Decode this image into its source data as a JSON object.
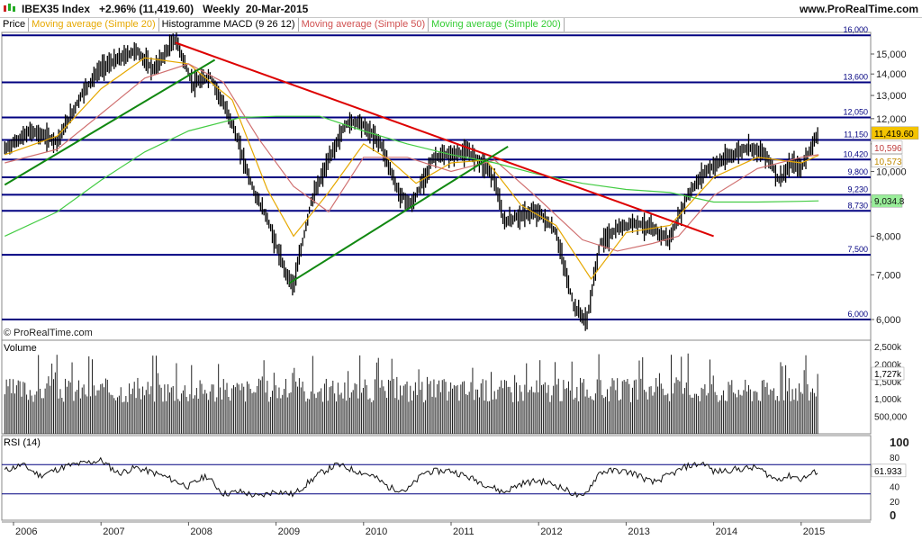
{
  "header": {
    "title": "IBEX35 Index   +2.96% (11,419.60)   Weekly  20-Mar-2015",
    "brand": "www.ProRealTime.com"
  },
  "legend": [
    {
      "label": "Price",
      "color": "#000000"
    },
    {
      "label": "Moving average (Simple 20)",
      "color": "#e6a800"
    },
    {
      "label": "Histogramme MACD (9 26 12)",
      "color": "#000000"
    },
    {
      "label": "Moving average (Simple 50)",
      "color": "#d05050"
    },
    {
      "label": "Moving average (Simple 200)",
      "color": "#33cc33"
    }
  ],
  "watermark": "© ProRealTime.com",
  "colors": {
    "price": "#000000",
    "ma20": "#e6a800",
    "ma50": "#d07070",
    "ma200": "#44cc44",
    "trend_red": "#dd0000",
    "trend_green": "#118811",
    "levels": "#000080",
    "last_price_box": "#f5c400",
    "ma200_box": "#99ee99"
  },
  "chart_data": [
    {
      "panel": "Price",
      "type": "bar",
      "subtype": "OHLC weekly",
      "title": "IBEX35 Index",
      "y_axis": {
        "scale": "log",
        "ticks": [
          6000,
          7000,
          8000,
          9000,
          10000,
          11000,
          12000,
          13000,
          14000,
          15000
        ],
        "tick_labels": [
          "6,000",
          "7,000",
          "8,000",
          "",
          "10,000",
          "",
          "12,000",
          "13,000",
          "14,000",
          "15,000"
        ]
      },
      "x_axis": {
        "ticks": [
          "2006",
          "2007",
          "2008",
          "2009",
          "2010",
          "2011",
          "2012",
          "2013",
          "2014",
          "2015"
        ]
      },
      "price_series": {
        "name": "Price",
        "points": [
          [
            2005.9,
            10800
          ],
          [
            2006.2,
            11500
          ],
          [
            2006.5,
            11100
          ],
          [
            2006.8,
            13200
          ],
          [
            2007.0,
            14300
          ],
          [
            2007.4,
            15200
          ],
          [
            2007.6,
            14200
          ],
          [
            2007.85,
            15800
          ],
          [
            2008.05,
            13500
          ],
          [
            2008.25,
            13900
          ],
          [
            2008.5,
            11800
          ],
          [
            2008.75,
            9300
          ],
          [
            2008.9,
            8500
          ],
          [
            2009.1,
            7100
          ],
          [
            2009.2,
            6750
          ],
          [
            2009.4,
            9000
          ],
          [
            2009.6,
            10400
          ],
          [
            2009.8,
            11800
          ],
          [
            2009.95,
            11900
          ],
          [
            2010.2,
            11000
          ],
          [
            2010.4,
            9300
          ],
          [
            2010.55,
            8900
          ],
          [
            2010.8,
            10500
          ],
          [
            2011.0,
            10600
          ],
          [
            2011.2,
            10700
          ],
          [
            2011.4,
            10200
          ],
          [
            2011.5,
            9700
          ],
          [
            2011.6,
            8400
          ],
          [
            2011.8,
            8600
          ],
          [
            2012.0,
            8700
          ],
          [
            2012.2,
            8100
          ],
          [
            2012.4,
            6300
          ],
          [
            2012.55,
            5950
          ],
          [
            2012.7,
            7800
          ],
          [
            2012.9,
            8200
          ],
          [
            2013.1,
            8400
          ],
          [
            2013.3,
            8200
          ],
          [
            2013.5,
            7900
          ],
          [
            2013.7,
            9200
          ],
          [
            2013.9,
            10000
          ],
          [
            2014.1,
            10400
          ],
          [
            2014.4,
            10900
          ],
          [
            2014.6,
            10600
          ],
          [
            2014.75,
            9700
          ],
          [
            2014.9,
            10300
          ],
          [
            2015.0,
            10100
          ],
          [
            2015.1,
            10800
          ],
          [
            2015.2,
            11419.6
          ]
        ],
        "last": 11419.6
      },
      "moving_averages": [
        {
          "name": "Moving average (Simple 20)",
          "last": 10573,
          "points": [
            [
              2005.9,
              10600
            ],
            [
              2006.5,
              11300
            ],
            [
              2007.0,
              13300
            ],
            [
              2007.5,
              14800
            ],
            [
              2008.0,
              14500
            ],
            [
              2008.5,
              12800
            ],
            [
              2008.9,
              9400
            ],
            [
              2009.2,
              8000
            ],
            [
              2009.6,
              9300
            ],
            [
              2010.0,
              11000
            ],
            [
              2010.3,
              10400
            ],
            [
              2010.6,
              9600
            ],
            [
              2011.0,
              10300
            ],
            [
              2011.4,
              10400
            ],
            [
              2011.8,
              8900
            ],
            [
              2012.2,
              8300
            ],
            [
              2012.6,
              6900
            ],
            [
              2013.0,
              8100
            ],
            [
              2013.5,
              8300
            ],
            [
              2014.0,
              9800
            ],
            [
              2014.5,
              10500
            ],
            [
              2015.0,
              10300
            ],
            [
              2015.2,
              10573
            ]
          ]
        },
        {
          "name": "Moving average (Simple 50)",
          "last": 10596,
          "points": [
            [
              2005.9,
              10300
            ],
            [
              2006.5,
              10800
            ],
            [
              2007.0,
              12200
            ],
            [
              2007.5,
              13800
            ],
            [
              2008.0,
              14500
            ],
            [
              2008.4,
              13600
            ],
            [
              2008.8,
              11200
            ],
            [
              2009.2,
              9500
            ],
            [
              2009.6,
              8700
            ],
            [
              2010.0,
              10500
            ],
            [
              2010.5,
              10500
            ],
            [
              2011.0,
              10000
            ],
            [
              2011.5,
              10400
            ],
            [
              2012.0,
              9100
            ],
            [
              2012.5,
              7900
            ],
            [
              2012.9,
              7600
            ],
            [
              2013.3,
              7800
            ],
            [
              2013.6,
              8000
            ],
            [
              2014.0,
              9200
            ],
            [
              2014.5,
              10100
            ],
            [
              2015.0,
              10500
            ],
            [
              2015.2,
              10596
            ]
          ]
        },
        {
          "name": "Moving average (Simple 200)",
          "last": 9034.8,
          "points": [
            [
              2005.9,
              8000
            ],
            [
              2006.5,
              8700
            ],
            [
              2007.0,
              9700
            ],
            [
              2007.5,
              10700
            ],
            [
              2008.0,
              11500
            ],
            [
              2008.6,
              12050
            ],
            [
              2009.0,
              12100
            ],
            [
              2009.5,
              12100
            ],
            [
              2010.0,
              11500
            ],
            [
              2010.5,
              11000
            ],
            [
              2011.0,
              10600
            ],
            [
              2011.5,
              10300
            ],
            [
              2012.0,
              9900
            ],
            [
              2012.5,
              9600
            ],
            [
              2013.0,
              9400
            ],
            [
              2013.5,
              9300
            ],
            [
              2014.0,
              9000
            ],
            [
              2014.5,
              9000
            ],
            [
              2015.0,
              9020
            ],
            [
              2015.2,
              9034.8
            ]
          ]
        }
      ],
      "horizontal_levels": [
        16000,
        13600,
        12050,
        11150,
        10420,
        9800,
        9230,
        8730,
        7500,
        6000
      ],
      "level_labels": [
        "16,000",
        "13,600",
        "12,050",
        "11,150",
        "10,420",
        "9,800",
        "9,230",
        "8,730",
        "7,500",
        "6,000"
      ],
      "value_boxes": [
        "11,419.60",
        "10,596",
        "10,573",
        "9,034.8"
      ],
      "trendlines": [
        {
          "color": "red",
          "from": [
            2007.85,
            15600
          ],
          "to": [
            2014.0,
            8000
          ]
        },
        {
          "color": "green",
          "from": [
            2005.9,
            9550
          ],
          "to": [
            2008.3,
            14700
          ]
        },
        {
          "color": "green",
          "from": [
            2009.15,
            6800
          ],
          "to": [
            2011.65,
            10900
          ]
        }
      ]
    },
    {
      "panel": "Volume",
      "type": "bar",
      "title": "Volume",
      "ylim": [
        0,
        2500000
      ],
      "ticks": [
        "2,500k",
        "2,000k",
        "1,500k",
        "1,000k",
        "500,000"
      ],
      "last_label": "1,727k",
      "last": 1727000
    },
    {
      "panel": "RSI (14)",
      "type": "line",
      "title": "RSI (14)",
      "ylim": [
        0,
        100
      ],
      "ticks": [
        "100",
        "80",
        "60",
        "40",
        "20",
        "0"
      ],
      "levels": [
        70,
        30
      ],
      "last_label": "61.933",
      "last": 61.933,
      "points": [
        [
          2005.9,
          62
        ],
        [
          2006.1,
          70
        ],
        [
          2006.3,
          55
        ],
        [
          2006.6,
          68
        ],
        [
          2006.9,
          74
        ],
        [
          2007.0,
          76
        ],
        [
          2007.2,
          58
        ],
        [
          2007.4,
          66
        ],
        [
          2007.7,
          55
        ],
        [
          2008.0,
          40
        ],
        [
          2008.2,
          55
        ],
        [
          2008.4,
          30
        ],
        [
          2008.6,
          33
        ],
        [
          2008.8,
          26
        ],
        [
          2009.0,
          34
        ],
        [
          2009.2,
          29
        ],
        [
          2009.5,
          58
        ],
        [
          2009.7,
          70
        ],
        [
          2009.9,
          62
        ],
        [
          2010.1,
          55
        ],
        [
          2010.3,
          38
        ],
        [
          2010.5,
          35
        ],
        [
          2010.7,
          60
        ],
        [
          2011.0,
          62
        ],
        [
          2011.3,
          48
        ],
        [
          2011.6,
          32
        ],
        [
          2011.8,
          44
        ],
        [
          2012.0,
          48
        ],
        [
          2012.2,
          42
        ],
        [
          2012.4,
          30
        ],
        [
          2012.5,
          24
        ],
        [
          2012.7,
          60
        ],
        [
          2012.9,
          62
        ],
        [
          2013.1,
          58
        ],
        [
          2013.3,
          45
        ],
        [
          2013.5,
          56
        ],
        [
          2013.7,
          68
        ],
        [
          2013.9,
          72
        ],
        [
          2014.0,
          60
        ],
        [
          2014.2,
          63
        ],
        [
          2014.5,
          66
        ],
        [
          2014.7,
          50
        ],
        [
          2014.9,
          55
        ],
        [
          2015.0,
          50
        ],
        [
          2015.2,
          61.933
        ]
      ]
    }
  ]
}
